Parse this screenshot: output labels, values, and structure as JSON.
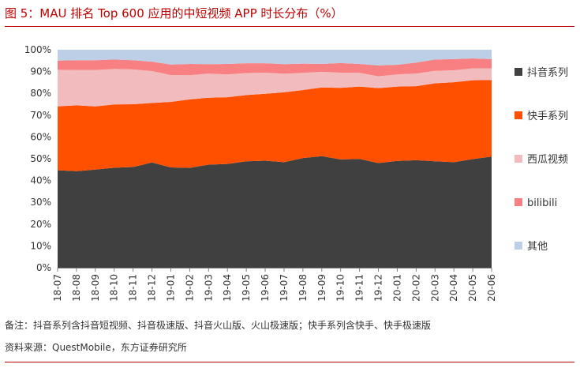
{
  "title": "图 5：MAU 排名 Top 600 应用的中短视频 APP 时长分布（%）",
  "note": "备注：抖音系列含抖音短视频、抖音极速版、抖音火山版、火山极速版；快手系列含快手、快手极速版",
  "source": "资料来源：QuestMobile，东方证券研究所",
  "chart_data": {
    "type": "area",
    "stacked": true,
    "x": [
      "18-07",
      "18-08",
      "18-09",
      "18-10",
      "18-11",
      "18-12",
      "19-01",
      "19-02",
      "19-03",
      "19-04",
      "19-05",
      "19-06",
      "19-07",
      "19-08",
      "19-09",
      "19-10",
      "19-11",
      "19-12",
      "20-01",
      "20-02",
      "20-03",
      "20-04",
      "20-05",
      "20-06"
    ],
    "ylim": [
      0,
      100
    ],
    "yticks": [
      "0%",
      "10%",
      "20%",
      "30%",
      "40%",
      "50%",
      "60%",
      "70%",
      "80%",
      "90%",
      "100%"
    ],
    "legend_position": "right",
    "series": [
      {
        "name": "抖音系列",
        "color": "#404040",
        "values": [
          44.7,
          44.3,
          45.0,
          45.9,
          46.2,
          48.3,
          46.0,
          45.8,
          47.3,
          47.6,
          48.8,
          49.1,
          48.4,
          50.3,
          51.2,
          49.7,
          49.9,
          48.0,
          49.0,
          49.3,
          48.8,
          48.4,
          49.8,
          51.0
        ]
      },
      {
        "name": "快手系列",
        "color": "#ff5000",
        "values": [
          29.3,
          30.2,
          29.0,
          29.0,
          28.8,
          27.3,
          30.1,
          31.4,
          30.7,
          30.6,
          30.4,
          30.7,
          32.1,
          31.2,
          31.5,
          32.8,
          33.2,
          34.4,
          34.1,
          34.0,
          35.8,
          36.7,
          36.2,
          35.1
        ]
      },
      {
        "name": "西瓜视频",
        "color": "#f2bcbe",
        "values": [
          16.8,
          16.2,
          16.7,
          16.3,
          16.0,
          14.6,
          12.3,
          11.1,
          11.1,
          10.5,
          10.1,
          9.7,
          8.5,
          7.9,
          7.2,
          7.0,
          6.3,
          5.4,
          5.6,
          5.8,
          5.7,
          5.5,
          5.5,
          5.4
        ]
      },
      {
        "name": "bilibili",
        "color": "#f88082",
        "values": [
          4.2,
          4.5,
          4.5,
          4.3,
          4.2,
          4.3,
          4.8,
          5.2,
          4.3,
          4.8,
          4.5,
          4.3,
          4.4,
          4.2,
          3.6,
          4.4,
          4.1,
          5.0,
          4.4,
          5.0,
          5.2,
          5.1,
          4.5,
          4.2
        ]
      },
      {
        "name": "其他",
        "color": "#bccfe6",
        "values": [
          5.0,
          4.8,
          4.8,
          4.5,
          4.8,
          5.5,
          6.8,
          6.5,
          6.6,
          6.5,
          6.2,
          6.2,
          6.6,
          6.4,
          6.5,
          6.1,
          6.5,
          7.2,
          6.9,
          5.9,
          4.5,
          4.3,
          4.0,
          4.3
        ]
      }
    ]
  }
}
